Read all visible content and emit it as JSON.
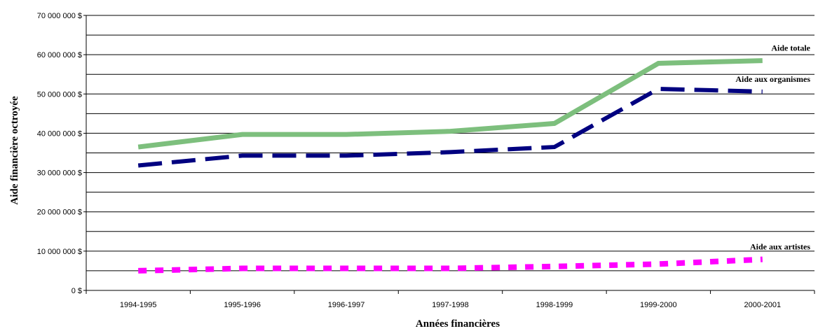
{
  "chart_data": {
    "type": "line",
    "xlabel": "Années financières",
    "ylabel": "Aide financière octroyée",
    "categories": [
      "1994-1995",
      "1995-1996",
      "1996-1997",
      "1997-1998",
      "1998-1999",
      "1999-2000",
      "2000-2001"
    ],
    "ylim": [
      0,
      70000000
    ],
    "yticks": [
      "0 $",
      "10 000 000 $",
      "20 000 000 $",
      "30 000 000 $",
      "40 000 000 $",
      "50 000 000 $",
      "60 000 000 $",
      "70 000 000 $"
    ],
    "grid": true,
    "series": [
      {
        "name": "Aide totale",
        "values": [
          36500000,
          39700000,
          39700000,
          40500000,
          42500000,
          57800000,
          58500000
        ],
        "color": "#7dbf7d",
        "style": "solid"
      },
      {
        "name": "Aide aux organismes",
        "values": [
          31800000,
          34300000,
          34300000,
          35200000,
          36500000,
          51300000,
          50600000
        ],
        "color": "#000080",
        "style": "dashed"
      },
      {
        "name": "Aide aux artistes",
        "values": [
          5000000,
          5600000,
          5600000,
          5600000,
          6100000,
          6700000,
          7900000
        ],
        "color": "#ff00ff",
        "style": "dotted"
      }
    ]
  }
}
